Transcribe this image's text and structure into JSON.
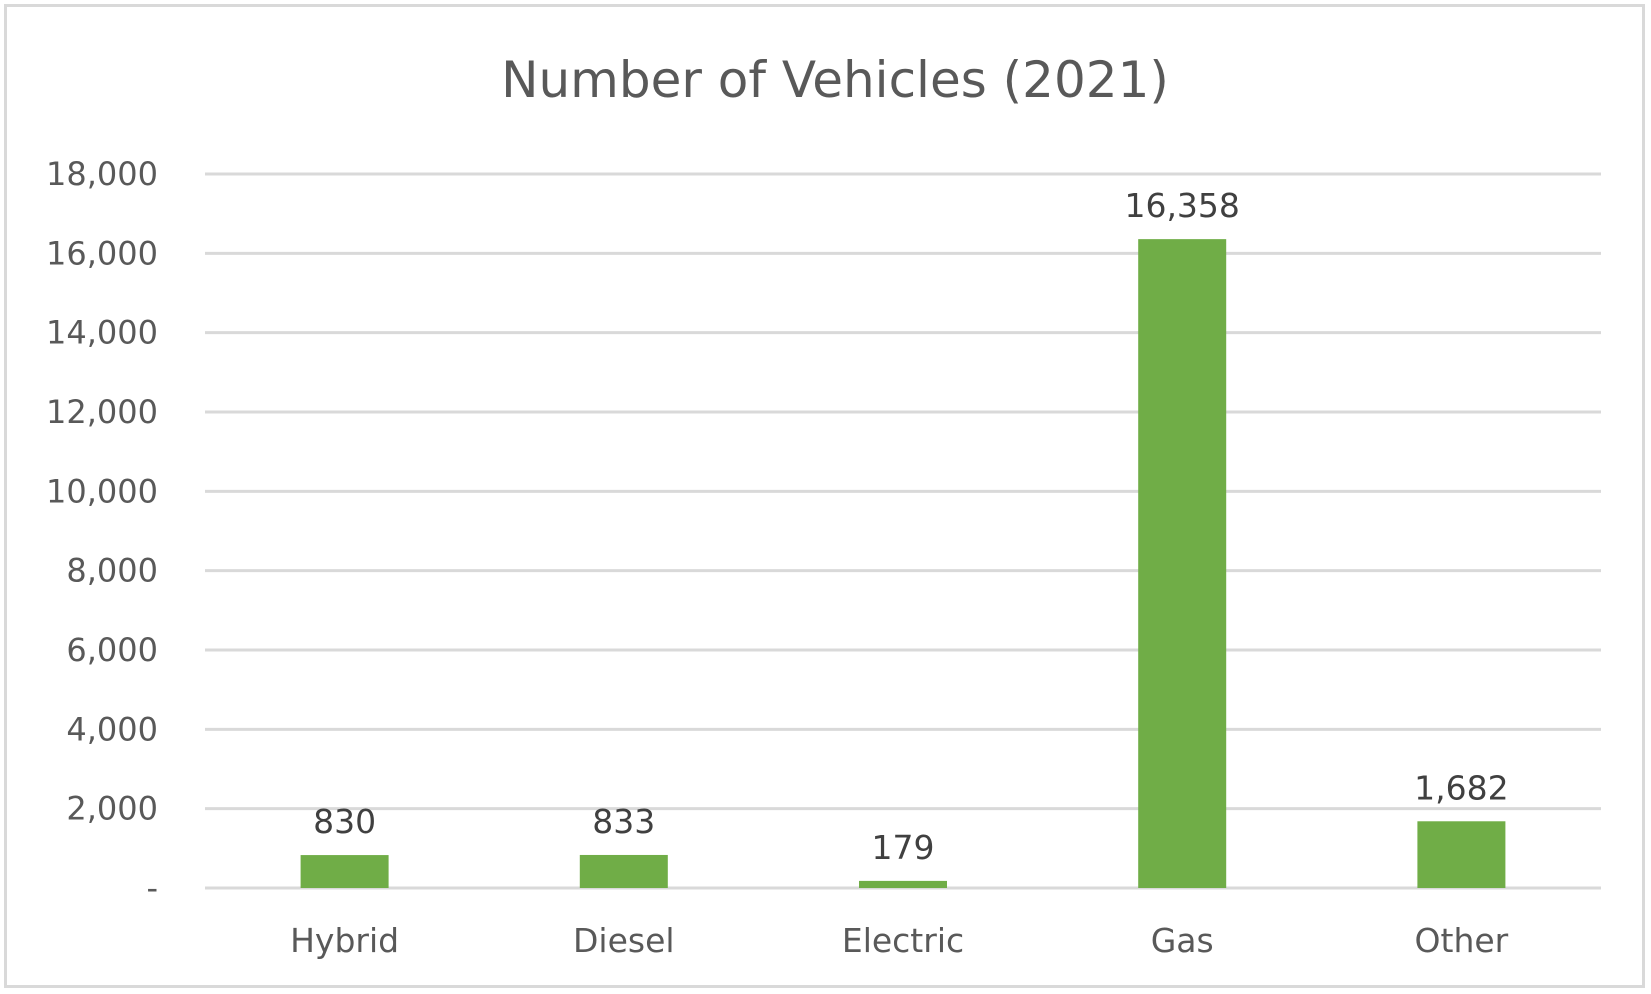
{
  "chart_data": {
    "type": "bar",
    "title": "Number of Vehicles (2021)",
    "categories": [
      "Hybrid",
      "Diesel",
      "Electric",
      "Gas",
      "Other"
    ],
    "values": [
      830,
      833,
      179,
      16358,
      1682
    ],
    "data_labels": [
      "830",
      "833",
      "179",
      "16,358",
      "1,682"
    ],
    "xlabel": "",
    "ylabel": "",
    "ylim": [
      0,
      18000
    ],
    "yticks": [
      0,
      2000,
      4000,
      6000,
      8000,
      10000,
      12000,
      14000,
      16000,
      18000
    ],
    "ytick_labels": [
      "-",
      "2,000",
      "4,000",
      "6,000",
      "8,000",
      "10,000",
      "12,000",
      "14,000",
      "16,000",
      "18,000"
    ],
    "grid": true,
    "legend": "none",
    "bar_color": "#70ad47",
    "gridline_color": "#d9d9d9",
    "text_color": "#595959"
  }
}
